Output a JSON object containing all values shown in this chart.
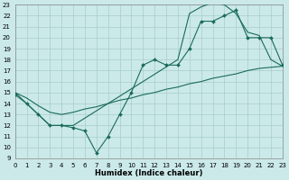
{
  "xlabel": "Humidex (Indice chaleur)",
  "bg_color": "#cbe9e9",
  "grid_color": "#a8cccc",
  "line_color": "#1a6b5a",
  "xmin": 0,
  "xmax": 23,
  "ymin": 9,
  "ymax": 23,
  "line1_x": [
    0,
    1,
    2,
    3,
    4,
    5,
    6,
    7,
    8,
    9,
    10,
    11,
    12,
    13,
    14,
    15,
    16,
    17,
    18,
    19,
    20,
    21,
    22,
    23
  ],
  "line1_y": [
    15.0,
    14.5,
    13.8,
    13.2,
    13.0,
    13.2,
    13.5,
    13.7,
    14.0,
    14.3,
    14.5,
    14.8,
    15.0,
    15.3,
    15.5,
    15.8,
    16.0,
    16.3,
    16.5,
    16.7,
    17.0,
    17.2,
    17.3,
    17.4
  ],
  "line2_x": [
    0,
    1,
    2,
    3,
    4,
    5,
    6,
    7,
    8,
    9,
    10,
    11,
    12,
    13,
    14,
    15,
    16,
    17,
    18,
    19,
    20,
    21,
    22,
    23
  ],
  "line2_y": [
    14.8,
    14.0,
    13.0,
    12.0,
    12.0,
    11.8,
    11.5,
    9.5,
    11.0,
    13.0,
    15.0,
    17.5,
    18.0,
    17.5,
    17.5,
    19.0,
    21.5,
    21.5,
    22.0,
    22.5,
    20.0,
    20.0,
    20.0,
    17.5
  ],
  "line3_x": [
    0,
    1,
    2,
    3,
    4,
    5,
    14,
    15,
    16,
    17,
    18,
    19,
    20,
    21,
    22,
    23
  ],
  "line3_y": [
    15.0,
    14.0,
    13.0,
    12.0,
    12.0,
    12.0,
    18.0,
    22.2,
    22.8,
    23.2,
    23.0,
    22.2,
    20.5,
    20.2,
    18.0,
    17.4
  ]
}
